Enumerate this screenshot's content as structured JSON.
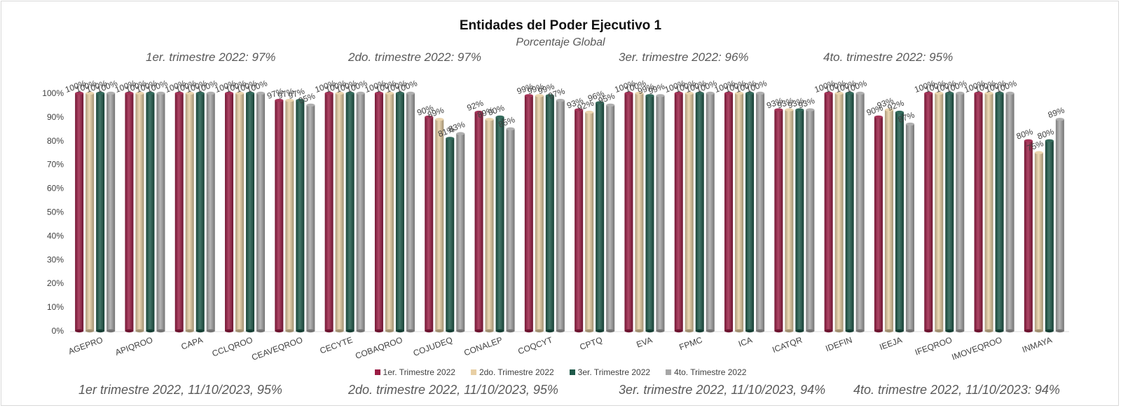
{
  "chart_data": {
    "type": "bar",
    "title": "Entidades del Poder Ejecutivo 1",
    "subtitle": "Porcentaje Global",
    "categories": [
      "AGEPRO",
      "APIQROO",
      "CAPA",
      "CCLQROO",
      "CEAVEQROO",
      "CECYTE",
      "COBAQROO",
      "COJUDEQ",
      "CONALEP",
      "COQCYT",
      "CPTQ",
      "EVA",
      "FPMC",
      "ICA",
      "ICATQR",
      "IDEFIN",
      "IEEJA",
      "IFEQROO",
      "IMOVEQROO",
      "INMAYA"
    ],
    "series": [
      {
        "name": "1er. Trimestre 2022",
        "color": "#9b1d45",
        "values": [
          100,
          100,
          100,
          100,
          97,
          100,
          100,
          90,
          92,
          99,
          93,
          100,
          100,
          100,
          93,
          100,
          90,
          100,
          100,
          80
        ]
      },
      {
        "name": "2do. Trimestre 2022",
        "color": "#e8cfa4",
        "values": [
          100,
          100,
          100,
          100,
          97,
          100,
          100,
          89,
          89,
          99,
          92,
          100,
          100,
          100,
          93,
          100,
          93,
          100,
          100,
          75
        ]
      },
      {
        "name": "3er. Trimestre 2022",
        "color": "#1f5a4a",
        "values": [
          100,
          100,
          100,
          100,
          97,
          100,
          100,
          81,
          90,
          99,
          96,
          99,
          100,
          100,
          93,
          100,
          92,
          100,
          100,
          80
        ]
      },
      {
        "name": "4to. Trimestre 2022",
        "color": "#a6a6a6",
        "values": [
          100,
          100,
          100,
          100,
          95,
          100,
          100,
          83,
          85,
          97,
          95,
          99,
          100,
          100,
          93,
          100,
          87,
          100,
          100,
          89
        ]
      }
    ],
    "yticks": [
      "0%",
      "10%",
      "20%",
      "30%",
      "40%",
      "50%",
      "60%",
      "70%",
      "80%",
      "90%",
      "100%"
    ],
    "ylim": [
      0,
      100
    ],
    "grid": false,
    "legend_position": "bottom"
  },
  "quarter_notes": [
    "1er. trimestre 2022: 97%",
    "2do. trimestre 2022: 97%",
    "3er. trimestre 2022: 96%",
    "4to. trimestre 2022: 95%"
  ],
  "footer_notes": [
    "1er trimestre  2022,  11/10/2023, 95%",
    "2do. trimestre 2022, 11/10/2023, 95%",
    "3er. trimestre 2022, 11/10/2023, 94%",
    "4to. trimestre 2022, 11/10/2023: 94%"
  ]
}
